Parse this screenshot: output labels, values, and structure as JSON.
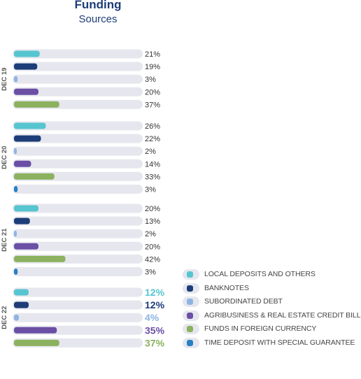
{
  "title": "Funding",
  "subtitle": "Sources",
  "chart_data": {
    "type": "bar",
    "orientation": "horizontal",
    "title": "Funding",
    "subtitle": "Sources",
    "unit": "%",
    "categories": [
      "LOCAL DEPOSITS AND OTHERS",
      "BANKNOTES",
      "SUBORDINATED DEBT",
      "AGRIBUSINESS & REAL ESTATE CREDIT BILLS",
      "FUNDS IN FOREIGN CURRENCY",
      "TIME DEPOSIT WITH SPECIAL GUARANTEE"
    ],
    "colors": [
      "#56c5d0",
      "#1d3d78",
      "#8fb4e3",
      "#6a4fa5",
      "#8cb15f",
      "#2a7fc4"
    ],
    "series": [
      {
        "name": "DEC 19",
        "values": [
          21,
          19,
          3,
          20,
          37,
          null
        ]
      },
      {
        "name": "DEC 20",
        "values": [
          26,
          22,
          2,
          14,
          33,
          3
        ]
      },
      {
        "name": "DEC 21",
        "values": [
          20,
          13,
          2,
          20,
          42,
          3
        ]
      },
      {
        "name": "DEC 22",
        "values": [
          12,
          12,
          4,
          35,
          37,
          null
        ]
      }
    ],
    "xlim": [
      0,
      100
    ],
    "legend_position": "bottom-right"
  }
}
